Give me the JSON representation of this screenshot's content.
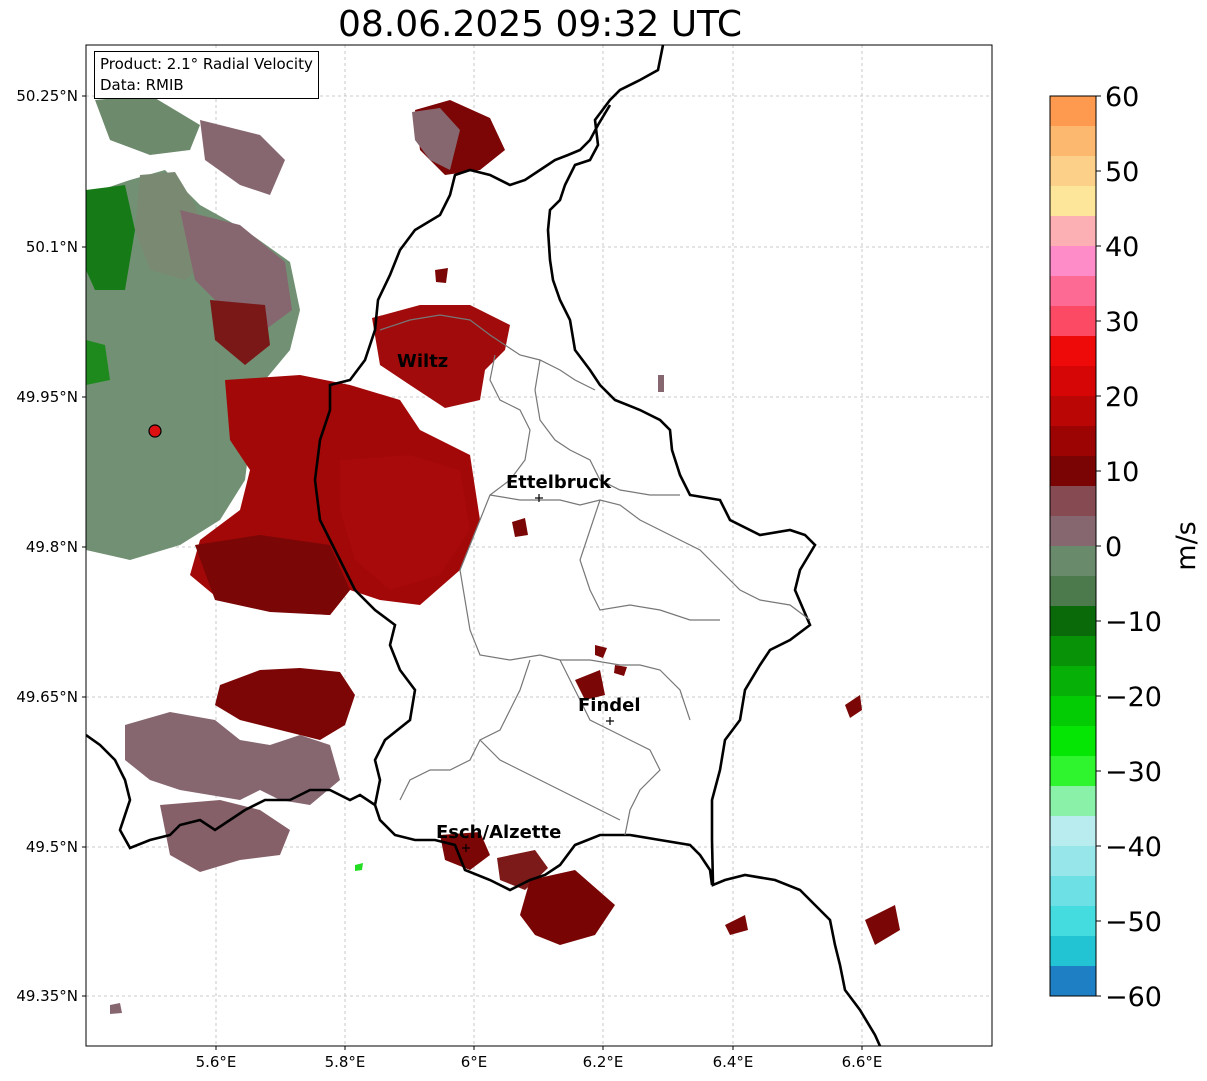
{
  "title": "08.06.2025 09:32 UTC",
  "info": {
    "product": "Product: 2.1° Radial Velocity",
    "data": "Data: RMIB"
  },
  "lat_labels": [
    "50.25°N",
    "50.1°N",
    "49.95°N",
    "49.8°N",
    "49.65°N",
    "49.5°N",
    "49.35°N"
  ],
  "lon_labels": [
    "5.6°E",
    "5.8°E",
    "6°E",
    "6.2°E",
    "6.4°E",
    "6.6°E"
  ],
  "cities": [
    {
      "name": "Wiltz"
    },
    {
      "name": "Ettelbruck"
    },
    {
      "name": "Findel"
    },
    {
      "name": "Esch/Alzette"
    }
  ],
  "colorbar": {
    "unit": "m/s",
    "ticks": [
      "60",
      "50",
      "40",
      "30",
      "20",
      "10",
      "0",
      "−10",
      "−20",
      "−30",
      "−40",
      "−50",
      "−60"
    ],
    "range": [
      -60,
      60
    ]
  }
}
